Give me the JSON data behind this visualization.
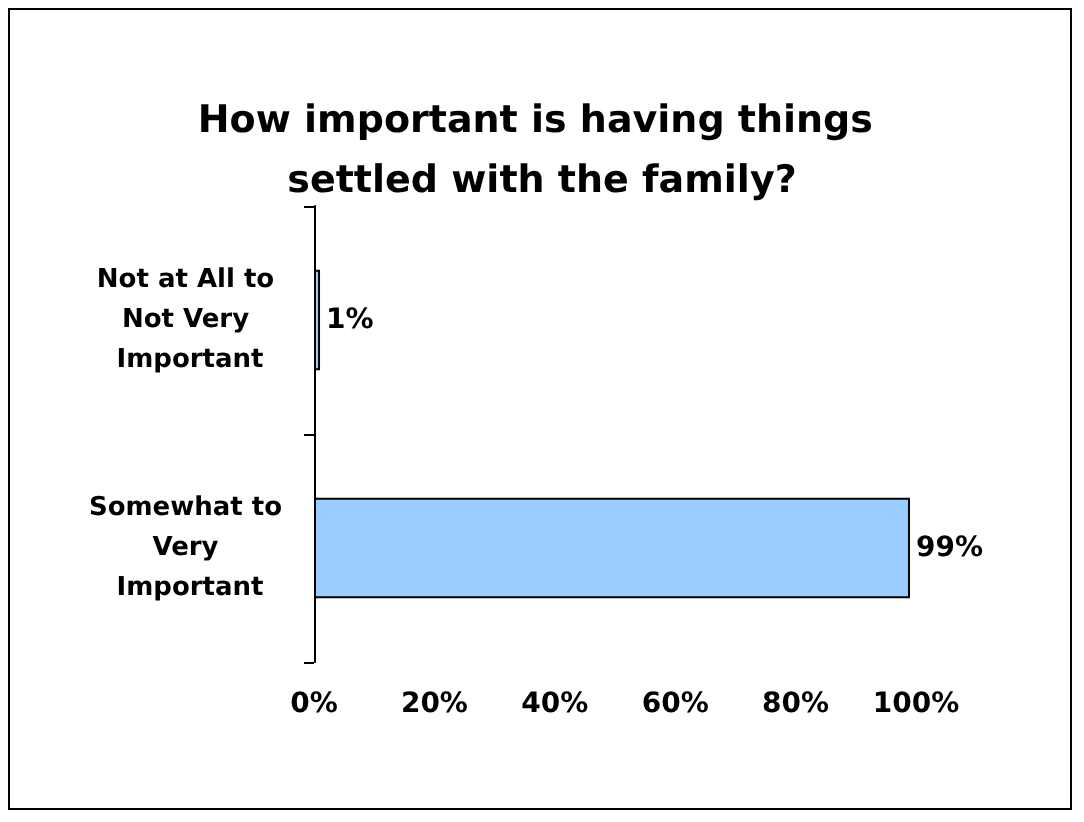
{
  "chart_data": {
    "type": "bar",
    "orientation": "horizontal",
    "title": "How important is having things settled with the family?",
    "categories": [
      "Not at All to Not Very Important",
      "Somewhat to Very Important"
    ],
    "values": [
      1,
      99
    ],
    "value_labels": [
      "1%",
      "99%"
    ],
    "color": "#99ccff",
    "xlim": [
      0,
      100
    ],
    "xticks": [
      {
        "value": 0,
        "label": "0%"
      },
      {
        "value": 20,
        "label": "20%"
      },
      {
        "value": 40,
        "label": "40%"
      },
      {
        "value": 60,
        "label": "60%"
      },
      {
        "value": 80,
        "label": "80%"
      },
      {
        "value": 100,
        "label": "100%"
      }
    ],
    "grid": false
  }
}
